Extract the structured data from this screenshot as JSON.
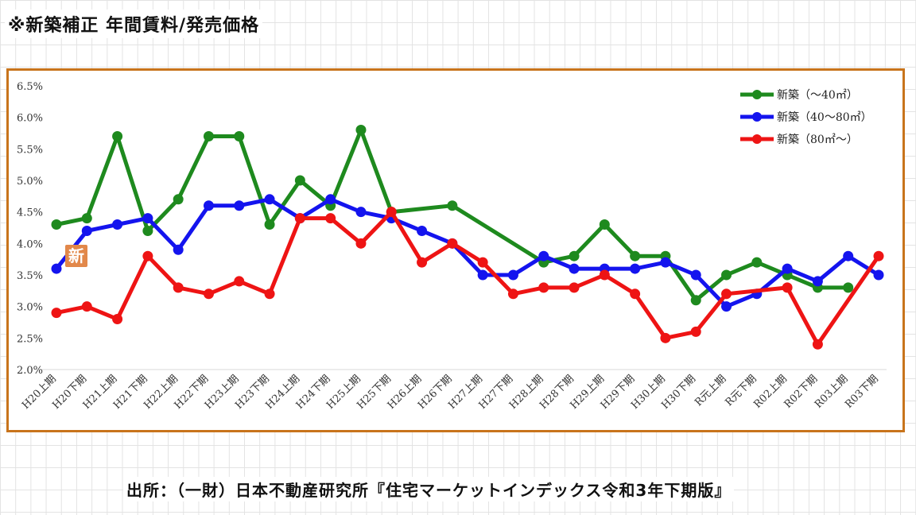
{
  "title": "※新築補正 年間賃料/発売価格",
  "source": "出所：（一財）日本不動産研究所『住宅マーケットインデックス令和3年下期版』",
  "badge": "新",
  "chart_data": {
    "type": "line",
    "categories": [
      "H20上期",
      "H20下期",
      "H21上期",
      "H21下期",
      "H22上期",
      "H22下期",
      "H23上期",
      "H23下期",
      "H24上期",
      "H24下期",
      "H25上期",
      "H25下期",
      "H26上期",
      "H26下期",
      "H27上期",
      "H27下期",
      "H28上期",
      "H28下期",
      "H29上期",
      "H29下期",
      "H30上期",
      "H30下期",
      "R元上期",
      "R元下期",
      "R02上期",
      "R02下期",
      "R03上期",
      "R03下期"
    ],
    "ylim": [
      2.0,
      6.5
    ],
    "yticks": [
      "6.5%",
      "6.0%",
      "5.5%",
      "5.0%",
      "4.5%",
      "4.0%",
      "3.5%",
      "3.0%",
      "2.5%",
      "2.0%"
    ],
    "ytick_values": [
      6.5,
      6.0,
      5.5,
      5.0,
      4.5,
      4.0,
      3.5,
      3.0,
      2.5,
      2.0
    ],
    "grid": false,
    "legend": "top-right",
    "series": [
      {
        "name": "新築（～40㎡）",
        "color": "#1e8a1e",
        "values": [
          4.3,
          4.4,
          5.7,
          4.2,
          4.7,
          5.7,
          5.7,
          4.3,
          5.0,
          4.6,
          5.8,
          4.5,
          null,
          4.6,
          null,
          null,
          3.7,
          3.8,
          4.3,
          3.8,
          3.8,
          3.1,
          3.5,
          3.7,
          3.5,
          3.3,
          3.3,
          null
        ]
      },
      {
        "name": "新築（40～80㎡）",
        "color": "#1414ee",
        "values": [
          3.6,
          4.2,
          4.3,
          4.4,
          3.9,
          4.6,
          4.6,
          4.7,
          4.4,
          4.7,
          4.5,
          4.4,
          4.2,
          4.0,
          3.5,
          3.5,
          3.8,
          3.6,
          3.6,
          3.6,
          3.7,
          3.5,
          3.0,
          3.2,
          3.6,
          3.4,
          3.8,
          3.5
        ]
      },
      {
        "name": "新築（80㎡～）",
        "color": "#ee1414",
        "values": [
          2.9,
          3.0,
          2.8,
          3.8,
          3.3,
          3.2,
          3.4,
          3.2,
          4.4,
          4.4,
          4.0,
          4.5,
          3.7,
          4.0,
          3.7,
          3.2,
          3.3,
          3.3,
          3.5,
          3.2,
          2.5,
          2.6,
          3.2,
          null,
          3.3,
          2.4,
          null,
          3.8
        ]
      }
    ]
  }
}
